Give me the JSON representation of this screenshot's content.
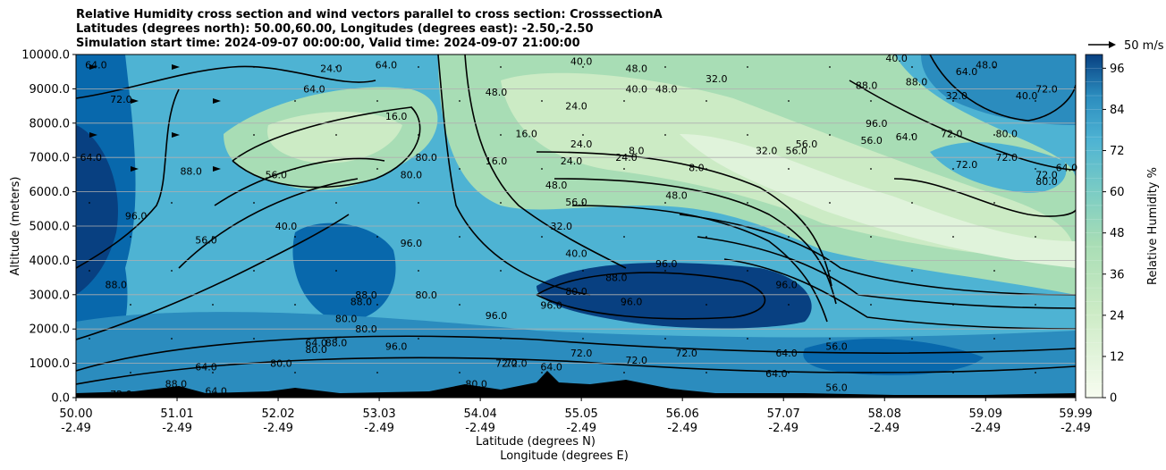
{
  "chart_data": {
    "type": "heatmap",
    "title_lines": [
      "Relative Humidity cross section and wind vectors parallel to cross section: CrosssectionA",
      "Latitudes (degrees north): 50.00,60.00, Longitudes (degrees east): -2.50,-2.50",
      "Simulation start time: 2024-09-07 00:00:00, Valid time: 2024-09-07 21:00:00"
    ],
    "xlabel_lines": [
      "Latitude (degrees N)",
      "Longitude (degrees E)"
    ],
    "ylabel": "Altitude (meters)",
    "x_ticks": [
      {
        "lat": "50.00",
        "lon": "-2.49"
      },
      {
        "lat": "51.01",
        "lon": "-2.49"
      },
      {
        "lat": "52.02",
        "lon": "-2.49"
      },
      {
        "lat": "53.03",
        "lon": "-2.49"
      },
      {
        "lat": "54.04",
        "lon": "-2.49"
      },
      {
        "lat": "55.05",
        "lon": "-2.49"
      },
      {
        "lat": "56.06",
        "lon": "-2.49"
      },
      {
        "lat": "57.07",
        "lon": "-2.49"
      },
      {
        "lat": "58.08",
        "lon": "-2.49"
      },
      {
        "lat": "59.09",
        "lon": "-2.49"
      },
      {
        "lat": "59.99",
        "lon": "-2.49"
      }
    ],
    "xlim": [
      50.0,
      59.99
    ],
    "y_ticks": [
      "0.0",
      "1000.0",
      "2000.0",
      "3000.0",
      "4000.0",
      "5000.0",
      "6000.0",
      "7000.0",
      "8000.0",
      "9000.0",
      "10000.0"
    ],
    "ylim": [
      0,
      10000
    ],
    "grid": "horizontal",
    "colorbar": {
      "label": "Relative Humidity %",
      "ticks": [
        "0",
        "12",
        "24",
        "36",
        "48",
        "60",
        "72",
        "84",
        "96"
      ],
      "range": [
        0,
        100
      ],
      "colormap": "GnBu",
      "low_color": "#f7fcf0",
      "mid_color": "#7bccc4",
      "high_color": "#084081"
    },
    "wind_reference": {
      "label": "50 m/s"
    },
    "contour_labels": [
      {
        "text": "64.0",
        "lat": 50.2,
        "alt": 9700
      },
      {
        "text": "72.0",
        "lat": 50.45,
        "alt": 8700
      },
      {
        "text": "64.0",
        "lat": 50.15,
        "alt": 7000
      },
      {
        "text": "88.0",
        "lat": 51.15,
        "alt": 6600
      },
      {
        "text": "96.0",
        "lat": 50.6,
        "alt": 5300
      },
      {
        "text": "56.0",
        "lat": 51.3,
        "alt": 4600
      },
      {
        "text": "88.0",
        "lat": 50.4,
        "alt": 3300
      },
      {
        "text": "56.0",
        "lat": 52.0,
        "alt": 6500
      },
      {
        "text": "40.0",
        "lat": 52.1,
        "alt": 5000
      },
      {
        "text": "64.0",
        "lat": 52.38,
        "alt": 9000
      },
      {
        "text": "24.0",
        "lat": 52.55,
        "alt": 9600
      },
      {
        "text": "16.0",
        "lat": 53.2,
        "alt": 8200
      },
      {
        "text": "80.0",
        "lat": 53.35,
        "alt": 6500
      },
      {
        "text": "80.0",
        "lat": 53.5,
        "alt": 7000
      },
      {
        "text": "64.0",
        "lat": 53.1,
        "alt": 9700
      },
      {
        "text": "48.0",
        "lat": 54.2,
        "alt": 8900
      },
      {
        "text": "16.0",
        "lat": 54.2,
        "alt": 6900
      },
      {
        "text": "96.0",
        "lat": 53.35,
        "alt": 4500
      },
      {
        "text": "88.0",
        "lat": 52.9,
        "alt": 3000
      },
      {
        "text": "88.0",
        "lat": 52.85,
        "alt": 2800
      },
      {
        "text": "80.0",
        "lat": 52.7,
        "alt": 2300
      },
      {
        "text": "96.0",
        "lat": 53.2,
        "alt": 1500
      },
      {
        "text": "80.0",
        "lat": 53.5,
        "alt": 3000
      },
      {
        "text": "96.0",
        "lat": 54.2,
        "alt": 2400
      },
      {
        "text": "64.0",
        "lat": 51.3,
        "alt": 900
      },
      {
        "text": "64.0",
        "lat": 51.4,
        "alt": 200
      },
      {
        "text": "72.0",
        "lat": 50.45,
        "alt": 100
      },
      {
        "text": "88.0",
        "lat": 51.0,
        "alt": 400
      },
      {
        "text": "80.0",
        "lat": 52.05,
        "alt": 1000
      },
      {
        "text": "64.0",
        "lat": 52.4,
        "alt": 1600
      },
      {
        "text": "80.0",
        "lat": 52.4,
        "alt": 1400
      },
      {
        "text": "88.0",
        "lat": 52.6,
        "alt": 1600
      },
      {
        "text": "80.0",
        "lat": 52.9,
        "alt": 2000
      },
      {
        "text": "80.0",
        "lat": 54.0,
        "alt": 400
      },
      {
        "text": "72.0",
        "lat": 54.3,
        "alt": 1000
      },
      {
        "text": "72.0",
        "lat": 54.4,
        "alt": 1000
      },
      {
        "text": "64.0",
        "lat": 54.75,
        "alt": 900
      },
      {
        "text": "96.0",
        "lat": 54.75,
        "alt": 2700
      },
      {
        "text": "40.0",
        "lat": 55.05,
        "alt": 9800
      },
      {
        "text": "48.0",
        "lat": 55.6,
        "alt": 9600
      },
      {
        "text": "40.0",
        "lat": 55.6,
        "alt": 9000
      },
      {
        "text": "48.0",
        "lat": 55.9,
        "alt": 9000
      },
      {
        "text": "24.0",
        "lat": 55.0,
        "alt": 8500
      },
      {
        "text": "16.0",
        "lat": 54.5,
        "alt": 7700
      },
      {
        "text": "24.0",
        "lat": 55.05,
        "alt": 7400
      },
      {
        "text": "24.0",
        "lat": 54.95,
        "alt": 6900
      },
      {
        "text": "24.0",
        "lat": 55.5,
        "alt": 7000
      },
      {
        "text": "8.0",
        "lat": 55.6,
        "alt": 7200
      },
      {
        "text": "48.0",
        "lat": 54.8,
        "alt": 6200
      },
      {
        "text": "56.0",
        "lat": 55.0,
        "alt": 5700
      },
      {
        "text": "48.0",
        "lat": 56.0,
        "alt": 5900
      },
      {
        "text": "32.0",
        "lat": 54.85,
        "alt": 5000
      },
      {
        "text": "40.0",
        "lat": 55.0,
        "alt": 4200
      },
      {
        "text": "96.0",
        "lat": 55.9,
        "alt": 3900
      },
      {
        "text": "88.0",
        "lat": 55.4,
        "alt": 3500
      },
      {
        "text": "80.0",
        "lat": 55.0,
        "alt": 3100
      },
      {
        "text": "96.0",
        "lat": 55.55,
        "alt": 2800
      },
      {
        "text": "72.0",
        "lat": 55.05,
        "alt": 1300
      },
      {
        "text": "72.0",
        "lat": 55.6,
        "alt": 1100
      },
      {
        "text": "72.0",
        "lat": 56.1,
        "alt": 1300
      },
      {
        "text": "32.0",
        "lat": 56.4,
        "alt": 9300
      },
      {
        "text": "8.0",
        "lat": 56.2,
        "alt": 6700
      },
      {
        "text": "32.0",
        "lat": 56.9,
        "alt": 7200
      },
      {
        "text": "56.0",
        "lat": 57.3,
        "alt": 7400
      },
      {
        "text": "56.0",
        "lat": 57.2,
        "alt": 7200
      },
      {
        "text": "96.0",
        "lat": 57.1,
        "alt": 3300
      },
      {
        "text": "56.0",
        "lat": 57.6,
        "alt": 1500
      },
      {
        "text": "64.0",
        "lat": 57.1,
        "alt": 1300
      },
      {
        "text": "64.0",
        "lat": 57.0,
        "alt": 700
      },
      {
        "text": "56.0",
        "lat": 57.6,
        "alt": 300
      },
      {
        "text": "88.0",
        "lat": 57.9,
        "alt": 9100
      },
      {
        "text": "96.0",
        "lat": 58.0,
        "alt": 8000
      },
      {
        "text": "56.0",
        "lat": 57.95,
        "alt": 7500
      },
      {
        "text": "64.0",
        "lat": 58.3,
        "alt": 7600
      },
      {
        "text": "88.0",
        "lat": 58.4,
        "alt": 9200
      },
      {
        "text": "72.0",
        "lat": 58.75,
        "alt": 7700
      },
      {
        "text": "72.0",
        "lat": 58.9,
        "alt": 6800
      },
      {
        "text": "72.0",
        "lat": 59.3,
        "alt": 7000
      },
      {
        "text": "80.0",
        "lat": 59.3,
        "alt": 7700
      },
      {
        "text": "72.0",
        "lat": 59.7,
        "alt": 6500
      },
      {
        "text": "80.0",
        "lat": 59.7,
        "alt": 6300
      },
      {
        "text": "64.0",
        "lat": 59.9,
        "alt": 6700
      },
      {
        "text": "32.0",
        "lat": 58.8,
        "alt": 8800
      },
      {
        "text": "64.0",
        "lat": 58.9,
        "alt": 9500
      },
      {
        "text": "72.0",
        "lat": 59.7,
        "alt": 9000
      },
      {
        "text": "48.0",
        "lat": 59.1,
        "alt": 9700
      },
      {
        "text": "40.0",
        "lat": 58.2,
        "alt": 9900
      },
      {
        "text": "40.0",
        "lat": 59.5,
        "alt": 8800
      }
    ]
  }
}
